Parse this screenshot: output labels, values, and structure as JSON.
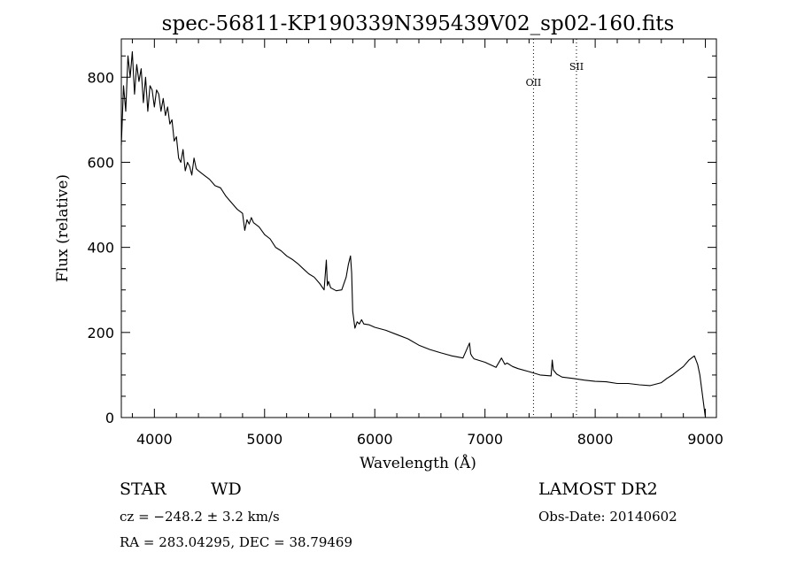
{
  "chart_data": {
    "type": "line",
    "title": "spec-56811-KP190339N395439V02_sp02-160.fits",
    "xlabel": "Wavelength (Å)",
    "ylabel": "Flux (relative)",
    "xlim": [
      3700,
      9100
    ],
    "ylim": [
      0,
      890
    ],
    "x_ticks": [
      4000,
      5000,
      6000,
      7000,
      8000,
      9000
    ],
    "y_ticks": [
      0,
      200,
      400,
      600,
      800
    ],
    "grid": false,
    "line_color": "#000000",
    "series": [
      {
        "x": [
          3700,
          3720,
          3740,
          3760,
          3780,
          3800,
          3820,
          3840,
          3860,
          3880,
          3900,
          3920,
          3940,
          3960,
          3980,
          4000,
          4020,
          4040,
          4060,
          4080,
          4100,
          4120,
          4140,
          4160,
          4180,
          4200,
          4220,
          4240,
          4260,
          4280,
          4300,
          4320,
          4340,
          4360,
          4380,
          4400,
          4450,
          4500,
          4550,
          4600,
          4650,
          4700,
          4750,
          4800,
          4820,
          4840,
          4860,
          4880,
          4900,
          4950,
          5000,
          5050,
          5100,
          5150,
          5200,
          5250,
          5300,
          5350,
          5400,
          5450,
          5500,
          5540,
          5560,
          5570,
          5580,
          5600,
          5650,
          5700,
          5740,
          5760,
          5780,
          5790,
          5800,
          5820,
          5840,
          5860,
          5880,
          5900,
          5950,
          6000,
          6100,
          6200,
          6300,
          6400,
          6500,
          6600,
          6700,
          6800,
          6860,
          6870,
          6880,
          6900,
          7000,
          7100,
          7150,
          7180,
          7200,
          7250,
          7300,
          7400,
          7500,
          7600,
          7610,
          7620,
          7650,
          7700,
          7800,
          7900,
          8000,
          8100,
          8200,
          8300,
          8400,
          8500,
          8600,
          8650,
          8700,
          8750,
          8800,
          8850,
          8900,
          8930,
          8950,
          8970,
          8990,
          9000
        ],
        "y": [
          640,
          780,
          720,
          850,
          800,
          860,
          760,
          830,
          790,
          820,
          740,
          800,
          720,
          780,
          770,
          730,
          770,
          760,
          720,
          750,
          710,
          730,
          690,
          700,
          650,
          660,
          610,
          600,
          630,
          580,
          600,
          590,
          570,
          610,
          585,
          580,
          570,
          560,
          545,
          540,
          520,
          505,
          490,
          480,
          440,
          465,
          455,
          470,
          458,
          448,
          430,
          420,
          400,
          392,
          380,
          372,
          362,
          350,
          338,
          330,
          315,
          300,
          370,
          310,
          320,
          305,
          298,
          300,
          330,
          360,
          380,
          340,
          250,
          210,
          225,
          220,
          230,
          220,
          218,
          212,
          205,
          195,
          185,
          170,
          160,
          152,
          145,
          140,
          175,
          150,
          145,
          138,
          130,
          118,
          140,
          125,
          128,
          120,
          115,
          108,
          100,
          98,
          135,
          112,
          102,
          95,
          92,
          88,
          85,
          84,
          80,
          80,
          77,
          75,
          82,
          92,
          100,
          110,
          120,
          135,
          145,
          125,
          100,
          60,
          20,
          0
        ]
      }
    ],
    "annotations": [
      {
        "label": "OII",
        "x": 7440
      },
      {
        "label": "SII",
        "x": 7830
      }
    ]
  },
  "info": {
    "object_class": "STAR",
    "subclass": "WD",
    "release": "LAMOST DR2",
    "redshift": "cz = −248.2 ± 3.2 km/s",
    "obs_date": "Obs-Date: 20140602",
    "coords": "RA = 283.04295, DEC =  38.79469"
  }
}
